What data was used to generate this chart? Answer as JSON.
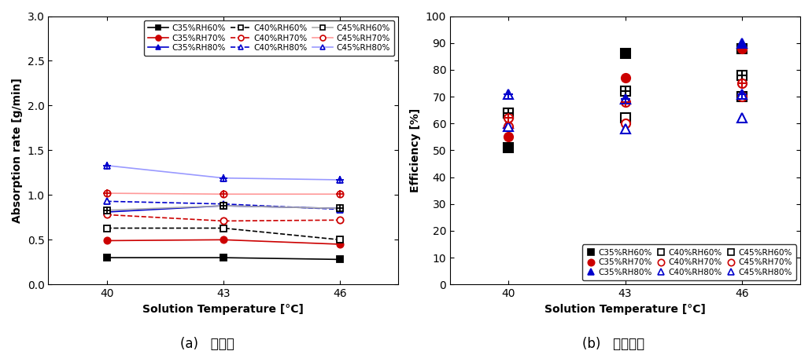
{
  "x": [
    40,
    43,
    46
  ],
  "absorption": {
    "C35_RH60": [
      0.3,
      0.3,
      0.28
    ],
    "C35_RH70": [
      0.49,
      0.5,
      0.45
    ],
    "C35_RH80": [
      0.81,
      0.88,
      0.85
    ],
    "C40_RH60": [
      0.63,
      0.63,
      0.5
    ],
    "C40_RH70": [
      0.78,
      0.71,
      0.72
    ],
    "C40_RH80": [
      0.93,
      0.9,
      0.84
    ],
    "C45_RH60": [
      0.83,
      0.88,
      0.85
    ],
    "C45_RH70": [
      1.02,
      1.01,
      1.01
    ],
    "C45_RH80": [
      1.33,
      1.19,
      1.17
    ]
  },
  "efficiency": {
    "C35_RH60": [
      51,
      86,
      88
    ],
    "C35_RH70": [
      55,
      77,
      88
    ],
    "C35_RH80": [
      60,
      69,
      90
    ],
    "C40_RH60": [
      64,
      62,
      70
    ],
    "C40_RH70": [
      59,
      60,
      70
    ],
    "C40_RH80": [
      59,
      58,
      62
    ],
    "C45_RH60": [
      64,
      72,
      78
    ],
    "C45_RH70": [
      62,
      68,
      75
    ],
    "C45_RH80": [
      71,
      69,
      71
    ]
  },
  "xlabel": "Solution Temperature [°C]",
  "ylabel_left": "Absorption rate [g/min]",
  "ylabel_right": "Efficiency [%]",
  "caption_left": "(a)   제습량",
  "caption_right": "(b)   제습효율",
  "ylim_left": [
    0.0,
    3.0
  ],
  "ylim_right": [
    0,
    100
  ],
  "xticks": [
    40,
    43,
    46
  ],
  "yticks_left": [
    0.0,
    0.5,
    1.0,
    1.5,
    2.0,
    2.5,
    3.0
  ],
  "yticks_right": [
    0,
    10,
    20,
    30,
    40,
    50,
    60,
    70,
    80,
    90,
    100
  ],
  "line_colors": {
    "C35_RH60": "#000000",
    "C35_RH70": "#cc0000",
    "C35_RH80": "#0000cc",
    "C40_RH60": "#000000",
    "C40_RH70": "#cc0000",
    "C40_RH80": "#0000cc",
    "C45_RH60": "#aaaaaa",
    "C45_RH70": "#ff9999",
    "C45_RH80": "#9999ff"
  },
  "marker_ec": {
    "C35_RH60": "#000000",
    "C35_RH70": "#cc0000",
    "C35_RH80": "#0000cc",
    "C40_RH60": "#000000",
    "C40_RH70": "#cc0000",
    "C40_RH80": "#0000cc",
    "C45_RH60": "#000000",
    "C45_RH70": "#cc0000",
    "C45_RH80": "#0000cc"
  },
  "marker_fc": {
    "C35_RH60": "#000000",
    "C35_RH70": "#cc0000",
    "C35_RH80": "#0000cc",
    "C40_RH60": "#ffffff",
    "C40_RH70": "#ffffff",
    "C40_RH80": "#ffffff",
    "C45_RH60": "#ffffff",
    "C45_RH70": "#ffffff",
    "C45_RH80": "#ffffff"
  },
  "linestyles": {
    "C35_RH60": "solid",
    "C35_RH70": "solid",
    "C35_RH80": "solid",
    "C40_RH60": "dashed",
    "C40_RH70": "dashed",
    "C40_RH80": "dashed",
    "C45_RH60": "solid",
    "C45_RH70": "solid",
    "C45_RH80": "solid"
  },
  "markers": {
    "C35_RH60": "s",
    "C35_RH70": "o",
    "C35_RH80": "^",
    "C40_RH60": "s",
    "C40_RH70": "o",
    "C40_RH80": "^",
    "C45_RH60": "s",
    "C45_RH70": "o",
    "C45_RH80": "^"
  },
  "labels": {
    "C35_RH60": "C35%RH60%",
    "C35_RH70": "C35%RH70%",
    "C35_RH80": "C35%RH80%",
    "C40_RH60": "C40%RH60%",
    "C40_RH70": "C40%RH70%",
    "C40_RH80": "C40%RH80%",
    "C45_RH60": "C45%RH60%",
    "C45_RH70": "C45%RH70%",
    "C45_RH80": "C45%RH80%"
  },
  "keys_order": [
    "C35_RH60",
    "C35_RH70",
    "C35_RH80",
    "C40_RH60",
    "C40_RH70",
    "C40_RH80",
    "C45_RH60",
    "C45_RH70",
    "C45_RH80"
  ]
}
